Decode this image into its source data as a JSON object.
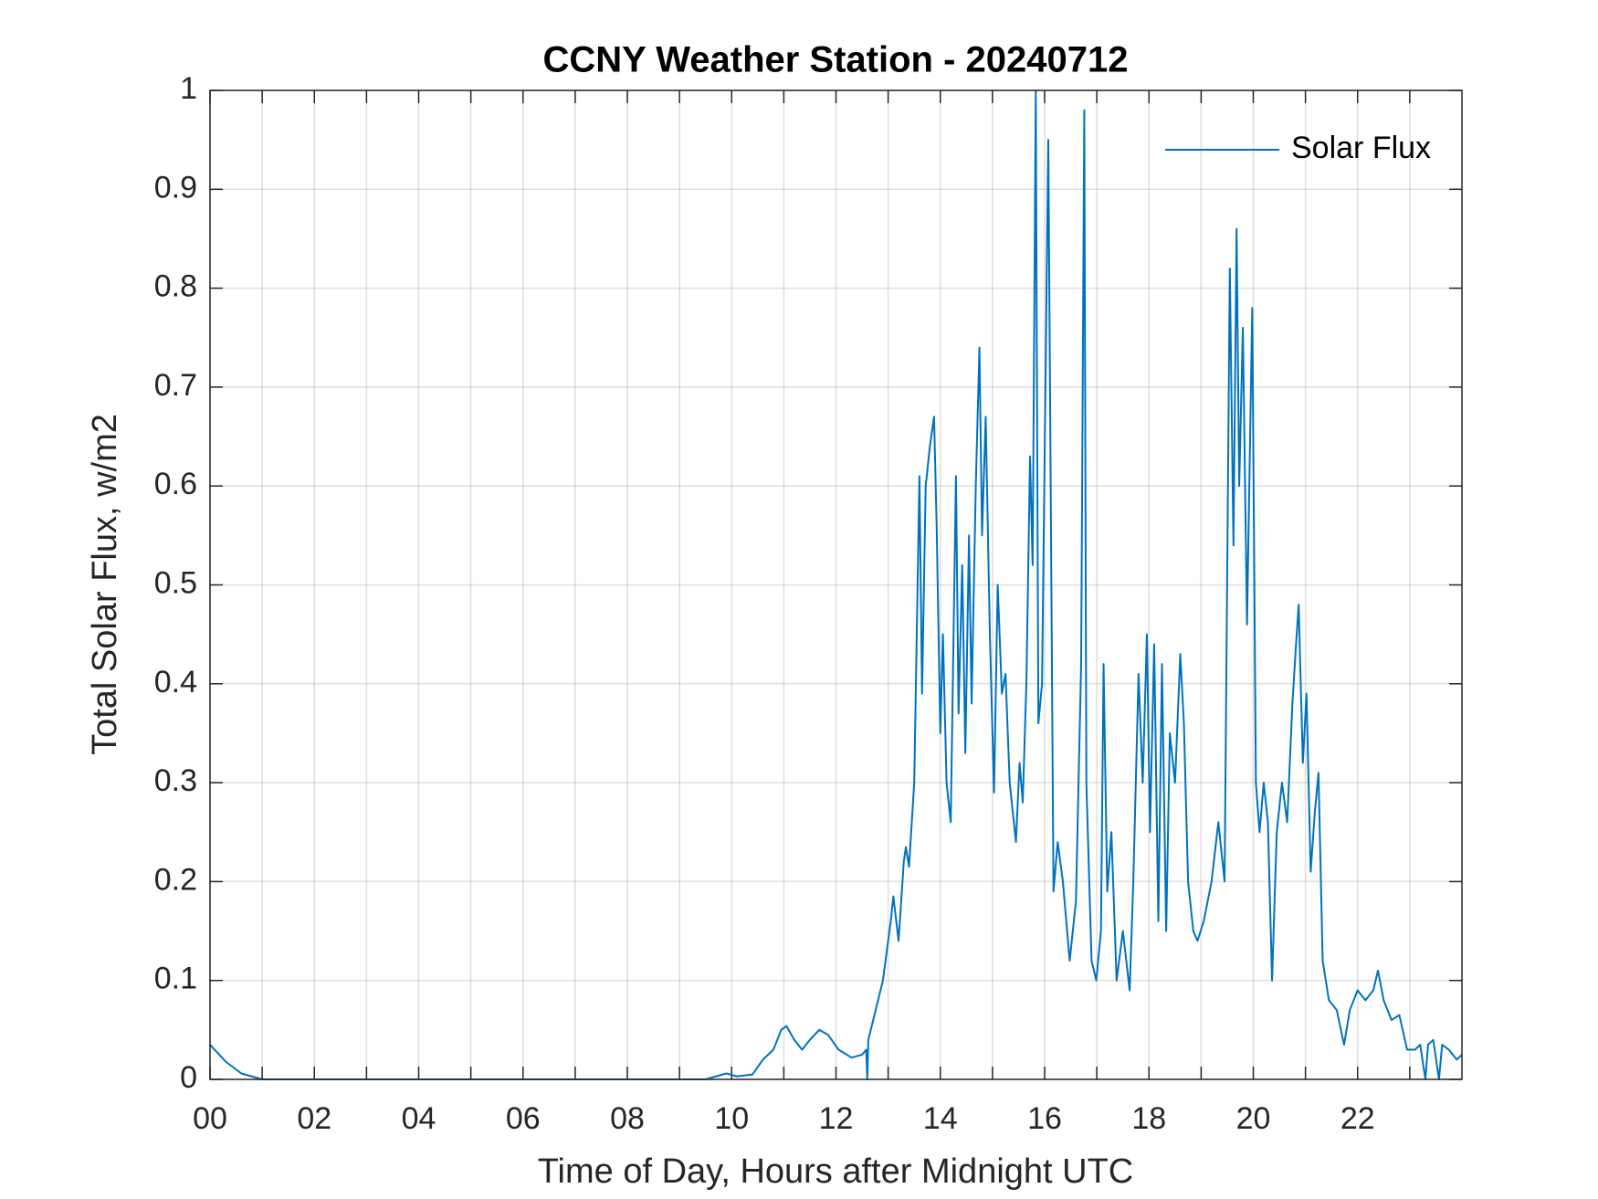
{
  "chart_data": {
    "type": "line",
    "title": "CCNY Weather Station - 20240712",
    "xlabel": "Time of Day, Hours after Midnight UTC",
    "ylabel": "Total Solar Flux, w/m2",
    "xlim": [
      0,
      24
    ],
    "ylim": [
      0,
      1
    ],
    "xticks": [
      {
        "value": 0,
        "label": "00"
      },
      {
        "value": 2,
        "label": "02"
      },
      {
        "value": 4,
        "label": "04"
      },
      {
        "value": 6,
        "label": "06"
      },
      {
        "value": 8,
        "label": "08"
      },
      10,
      12,
      14,
      16,
      18,
      20,
      22
    ],
    "xminorticks": [
      1,
      3,
      5,
      7,
      9,
      11,
      13,
      15,
      17,
      19,
      21,
      23
    ],
    "yticks": [
      0,
      0.1,
      0.2,
      0.3,
      0.4,
      0.5,
      0.6,
      0.7,
      0.8,
      0.9,
      1
    ],
    "grid": true,
    "legend": "northeast",
    "x": [
      0,
      0.3,
      0.6,
      1,
      9.5,
      9.9,
      10.1,
      10.4,
      10.6,
      10.8,
      10.95,
      11.05,
      11.2,
      11.35,
      11.5,
      11.68,
      11.85,
      12.05,
      12.3,
      12.5,
      12.58,
      12.6,
      12.62,
      12.9,
      13.05,
      13.1,
      13.2,
      13.3,
      13.34,
      13.4,
      13.5,
      13.6,
      13.65,
      13.72,
      13.8,
      13.88,
      13.93,
      14.0,
      14.05,
      14.12,
      14.2,
      14.3,
      14.35,
      14.42,
      14.48,
      14.55,
      14.6,
      14.68,
      14.75,
      14.8,
      14.87,
      14.95,
      15.03,
      15.1,
      15.18,
      15.25,
      15.33,
      15.45,
      15.52,
      15.58,
      15.65,
      15.72,
      15.77,
      15.83,
      15.88,
      15.95,
      16.07,
      16.17,
      16.25,
      16.35,
      16.48,
      16.6,
      16.7,
      16.76,
      16.8,
      16.9,
      16.99,
      17.08,
      17.13,
      17.2,
      17.28,
      17.38,
      17.5,
      17.63,
      17.7,
      17.8,
      17.88,
      17.96,
      18.02,
      18.1,
      18.18,
      18.25,
      18.33,
      18.4,
      18.5,
      18.6,
      18.67,
      18.75,
      18.85,
      18.93,
      19.05,
      19.2,
      19.33,
      19.45,
      19.55,
      19.62,
      19.68,
      19.73,
      19.8,
      19.88,
      19.98,
      20.05,
      20.12,
      20.2,
      20.28,
      20.36,
      20.45,
      20.55,
      20.65,
      20.75,
      20.82,
      20.87,
      20.95,
      21.02,
      21.1,
      21.18,
      21.25,
      21.33,
      21.45,
      21.6,
      21.74,
      21.85,
      22.0,
      22.15,
      22.3,
      22.39,
      22.5,
      22.65,
      22.8,
      22.95,
      23.1,
      23.2,
      23.3,
      23.35,
      23.45,
      23.56,
      23.62,
      23.75,
      23.9,
      24
    ],
    "series": [
      {
        "name": "Solar Flux",
        "color": "#0072bd",
        "values": [
          0.035,
          0.018,
          0.006,
          0,
          0,
          0.006,
          0.003,
          0.005,
          0.02,
          0.03,
          0.05,
          0.054,
          0.04,
          0.03,
          0.04,
          0.05,
          0.045,
          0.03,
          0.022,
          0.025,
          0.03,
          0,
          0.04,
          0.1,
          0.16,
          0.185,
          0.14,
          0.22,
          0.235,
          0.215,
          0.3,
          0.61,
          0.39,
          0.6,
          0.64,
          0.67,
          0.56,
          0.35,
          0.45,
          0.3,
          0.26,
          0.61,
          0.37,
          0.52,
          0.33,
          0.55,
          0.38,
          0.6,
          0.74,
          0.55,
          0.67,
          0.45,
          0.29,
          0.5,
          0.39,
          0.41,
          0.3,
          0.24,
          0.32,
          0.28,
          0.4,
          0.63,
          0.52,
          1,
          0.36,
          0.4,
          0.95,
          0.19,
          0.24,
          0.2,
          0.12,
          0.18,
          0.42,
          0.98,
          0.3,
          0.12,
          0.1,
          0.15,
          0.42,
          0.19,
          0.25,
          0.1,
          0.15,
          0.09,
          0.2,
          0.41,
          0.3,
          0.45,
          0.25,
          0.44,
          0.16,
          0.42,
          0.15,
          0.35,
          0.3,
          0.43,
          0.36,
          0.2,
          0.15,
          0.14,
          0.16,
          0.2,
          0.26,
          0.2,
          0.82,
          0.54,
          0.86,
          0.6,
          0.76,
          0.46,
          0.78,
          0.3,
          0.25,
          0.3,
          0.26,
          0.1,
          0.25,
          0.3,
          0.26,
          0.38,
          0.44,
          0.48,
          0.32,
          0.39,
          0.21,
          0.27,
          0.31,
          0.12,
          0.08,
          0.07,
          0.035,
          0.07,
          0.09,
          0.08,
          0.09,
          0.11,
          0.08,
          0.06,
          0.065,
          0.03,
          0.03,
          0.035,
          0,
          0.035,
          0.04,
          0,
          0.035,
          0.03,
          0.02,
          0.025
        ]
      }
    ]
  }
}
